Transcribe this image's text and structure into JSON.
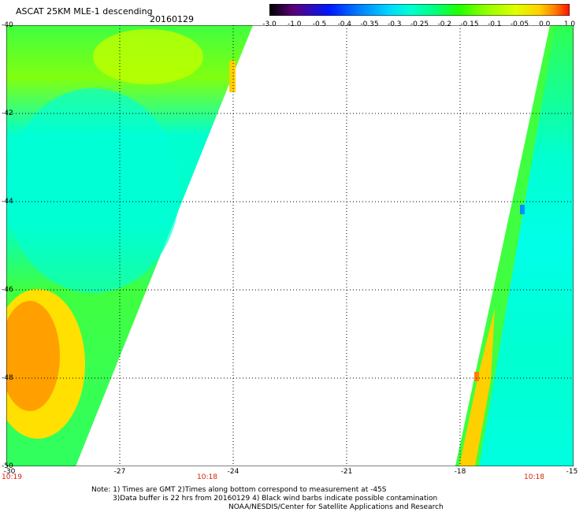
{
  "header": {
    "title": "ASCAT 25KM MLE-1 descending",
    "date": "20160129"
  },
  "colorbar": {
    "labels": [
      "-3.0",
      "-1.0",
      "-0.5",
      "-0.4",
      "-0.35",
      "-0.3",
      "-0.25",
      "-0.2",
      "-0.15",
      "-0.1",
      "-0.05",
      "0.0",
      "1.0"
    ],
    "colors": [
      "#000000",
      "#5a007a",
      "#0018ff",
      "#0080ff",
      "#00d8ff",
      "#00ffd0",
      "#00ff80",
      "#20ff00",
      "#90ff00",
      "#e0ff00",
      "#ffd000",
      "#ff8000",
      "#ff1000"
    ]
  },
  "map": {
    "lat_labels": [
      "-40",
      "-42",
      "-44",
      "-46",
      "-48",
      "-50"
    ],
    "lon_labels": [
      "-30",
      "-27",
      "-24",
      "-21",
      "-18",
      "-15"
    ],
    "time_labels": [
      "10:19",
      "10:18",
      "10:18"
    ],
    "lat_range": [
      -50,
      -40
    ],
    "lon_range": [
      -30,
      -15
    ]
  },
  "notes": {
    "line1": "Note: 1) Times are GMT 2)Times along bottom correspond to measurement at -45S",
    "line2": "3)Data buffer is 22 hrs from 20160129 4) Black wind barbs indicate possible contamination",
    "line3": "NOAA/NESDIS/Center for Satellite Applications and Research"
  }
}
